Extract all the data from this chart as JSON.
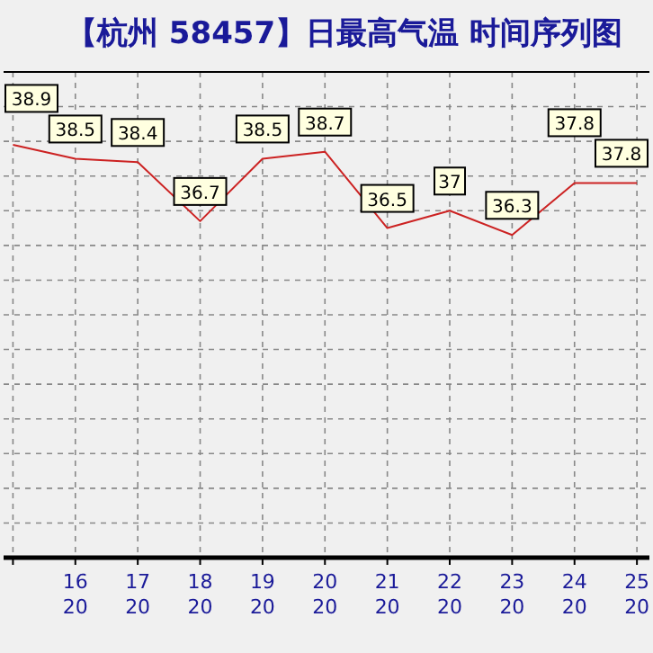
{
  "chart_data": {
    "type": "line",
    "title": "【杭州 58457】日最高气温 时间序列图",
    "categories": [
      null,
      "16\n20",
      "17\n20",
      "18\n20",
      "19\n20",
      "20\n20",
      "21\n20",
      "22\n20",
      "23\n20",
      "24\n20",
      "25\n20"
    ],
    "series": [
      {
        "color": "#cc2222",
        "values": [
          38.9,
          38.5,
          38.4,
          36.7,
          38.5,
          38.7,
          36.5,
          37,
          36.3,
          37.8,
          37.8
        ]
      }
    ],
    "ylim": [
      27,
      41
    ],
    "yticks": [
      {
        "value": 28,
        "label": null
      },
      {
        "value": 29,
        "label": null
      },
      {
        "value": 30,
        "label": null
      },
      {
        "value": 31,
        "label": null
      },
      {
        "value": 32,
        "label": null
      },
      {
        "value": 33,
        "label": null
      },
      {
        "value": 34,
        "label": null
      },
      {
        "value": 35,
        "label": null
      },
      {
        "value": 36,
        "label": null
      },
      {
        "value": 37,
        "label": null
      },
      {
        "value": 38,
        "label": null
      },
      {
        "value": 39,
        "label": null
      },
      {
        "value": 40,
        "label": null
      }
    ],
    "grid": true,
    "tick_labels": "x",
    "data_labels": true,
    "line_style": "solid",
    "marker": "none"
  }
}
